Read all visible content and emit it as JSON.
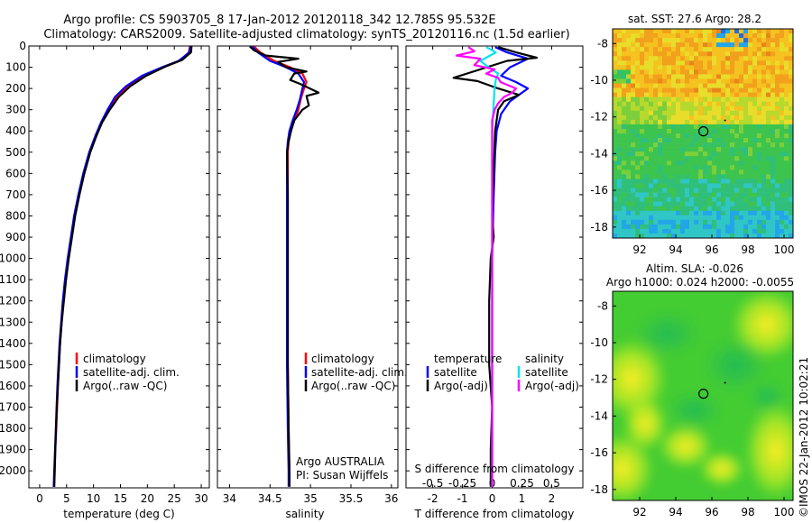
{
  "title_line1": "Argo profile: CS 5903705_8 17-Jan-2012 20120118_342 12.785S 95.532E",
  "title_line2": "Climatology: CARS2009. Satellite-adjusted climatology: synTS_20120116.nc (1.5d earlier)",
  "copyright": "©IMOS 22-Jan-2012 10:02:21",
  "colors": {
    "clim": "#ff0000",
    "sat": "#0000ff",
    "argo": "#000000",
    "sal_sat": "#00e5ee",
    "sal_argo": "#ff00ff"
  },
  "chart_data": [
    {
      "id": "temperature",
      "type": "line",
      "xlabel": "temperature (deg C)",
      "xlim": [
        -2,
        31.5
      ],
      "xticks": [
        "0",
        "5",
        "10",
        "15",
        "20",
        "25",
        "30"
      ],
      "ylim": [
        0,
        2080
      ],
      "yticks": [
        "0",
        "100",
        "200",
        "300",
        "400",
        "500",
        "600",
        "700",
        "800",
        "900",
        "1000",
        "1100",
        "1200",
        "1300",
        "1400",
        "1500",
        "1600",
        "1700",
        "1800",
        "1900",
        "2000"
      ],
      "legend": [
        "climatology",
        "satellite-adj. clim.",
        "Argo(..raw -QC)"
      ],
      "series": [
        {
          "name": "climatology",
          "color": "#ff0000",
          "points": [
            [
              27.9,
              2
            ],
            [
              27.7,
              30
            ],
            [
              26,
              70
            ],
            [
              23,
              100
            ],
            [
              19.5,
              140
            ],
            [
              16.5,
              190
            ],
            [
              14.4,
              240
            ],
            [
              12.8,
              300
            ],
            [
              11.5,
              360
            ],
            [
              10.5,
              420
            ],
            [
              9.3,
              500
            ],
            [
              8.2,
              600
            ],
            [
              7.3,
              700
            ],
            [
              6.5,
              800
            ],
            [
              5.9,
              900
            ],
            [
              5.3,
              1000
            ],
            [
              4.8,
              1100
            ],
            [
              4.4,
              1200
            ],
            [
              4.1,
              1300
            ],
            [
              3.8,
              1400
            ],
            [
              3.6,
              1500
            ],
            [
              3.4,
              1600
            ],
            [
              3.25,
              1700
            ],
            [
              3.1,
              1800
            ],
            [
              2.9,
              1900
            ],
            [
              2.75,
              2000
            ],
            [
              2.7,
              2075
            ]
          ]
        },
        {
          "name": "satellite-adj. clim.",
          "color": "#0000ff",
          "points": [
            [
              28,
              2
            ],
            [
              27.8,
              30
            ],
            [
              25.8,
              70
            ],
            [
              22.7,
              100
            ],
            [
              19,
              140
            ],
            [
              16,
              190
            ],
            [
              14,
              240
            ],
            [
              12.6,
              300
            ],
            [
              11.4,
              360
            ],
            [
              10.4,
              420
            ],
            [
              9.2,
              500
            ],
            [
              8.1,
              600
            ],
            [
              7.2,
              700
            ],
            [
              6.4,
              800
            ],
            [
              5.8,
              900
            ],
            [
              5.2,
              1000
            ],
            [
              4.7,
              1100
            ],
            [
              4.3,
              1200
            ],
            [
              4,
              1300
            ],
            [
              3.7,
              1400
            ],
            [
              3.5,
              1500
            ],
            [
              3.3,
              1600
            ],
            [
              3.15,
              1700
            ],
            [
              3,
              1800
            ],
            [
              2.85,
              1900
            ],
            [
              2.7,
              2000
            ],
            [
              2.6,
              2075
            ]
          ]
        },
        {
          "name": "Argo(..raw -QC)",
          "color": "#000000",
          "points": [
            [
              28.2,
              2
            ],
            [
              28.1,
              30
            ],
            [
              26.5,
              65
            ],
            [
              23.5,
              95
            ],
            [
              19.8,
              140
            ],
            [
              16.8,
              190
            ],
            [
              14.7,
              240
            ],
            [
              13,
              300
            ],
            [
              11.6,
              360
            ],
            [
              10.6,
              420
            ],
            [
              9.4,
              500
            ],
            [
              8.3,
              600
            ],
            [
              7.4,
              700
            ],
            [
              6.6,
              800
            ],
            [
              6,
              900
            ],
            [
              5.4,
              1000
            ],
            [
              4.9,
              1100
            ],
            [
              4.5,
              1200
            ],
            [
              4.1,
              1300
            ],
            [
              3.8,
              1400
            ],
            [
              3.6,
              1500
            ],
            [
              3.4,
              1600
            ],
            [
              3.2,
              1700
            ],
            [
              3.05,
              1800
            ],
            [
              2.9,
              1900
            ],
            [
              2.8,
              2000
            ],
            [
              2.7,
              2075
            ]
          ]
        }
      ]
    },
    {
      "id": "salinity",
      "type": "line",
      "xlabel": "salinity",
      "xlim": [
        33.85,
        36.08
      ],
      "xticks": [
        "34",
        "34.5",
        "35",
        "35.5",
        "36"
      ],
      "ylim": [
        0,
        2080
      ],
      "legend": [
        "climatology",
        "satellite-adj. clim.",
        "Argo(..raw -QC)"
      ],
      "annotation": [
        "Argo AUSTRALIA",
        "PI: Susan Wijffels"
      ],
      "series": [
        {
          "name": "climatology",
          "color": "#ff0000",
          "points": [
            [
              34.3,
              2
            ],
            [
              34.38,
              30
            ],
            [
              34.55,
              70
            ],
            [
              34.75,
              100
            ],
            [
              34.9,
              130
            ],
            [
              34.95,
              170
            ],
            [
              34.92,
              200
            ],
            [
              34.88,
              250
            ],
            [
              34.85,
              300
            ],
            [
              34.8,
              350
            ],
            [
              34.75,
              400
            ],
            [
              34.73,
              450
            ],
            [
              34.72,
              500
            ],
            [
              34.72,
              700
            ],
            [
              34.72,
              900
            ],
            [
              34.72,
              1200
            ],
            [
              34.72,
              1500
            ],
            [
              34.73,
              1800
            ],
            [
              34.74,
              2000
            ],
            [
              34.74,
              2075
            ]
          ]
        },
        {
          "name": "satellite-adj. clim.",
          "color": "#0000ff",
          "points": [
            [
              34.28,
              2
            ],
            [
              34.35,
              30
            ],
            [
              34.5,
              70
            ],
            [
              34.7,
              100
            ],
            [
              34.85,
              130
            ],
            [
              34.92,
              170
            ],
            [
              34.9,
              200
            ],
            [
              34.87,
              250
            ],
            [
              34.83,
              300
            ],
            [
              34.78,
              350
            ],
            [
              34.74,
              400
            ],
            [
              34.72,
              450
            ],
            [
              34.71,
              500
            ],
            [
              34.71,
              700
            ],
            [
              34.71,
              900
            ],
            [
              34.71,
              1200
            ],
            [
              34.71,
              1500
            ],
            [
              34.72,
              1800
            ],
            [
              34.73,
              2000
            ],
            [
              34.73,
              2075
            ]
          ]
        },
        {
          "name": "Argo(..raw -QC)",
          "color": "#000000",
          "points": [
            [
              34.25,
              2
            ],
            [
              34.3,
              20
            ],
            [
              34.45,
              45
            ],
            [
              34.85,
              60
            ],
            [
              34.6,
              75
            ],
            [
              34.7,
              100
            ],
            [
              34.95,
              120
            ],
            [
              34.8,
              130
            ],
            [
              34.75,
              160
            ],
            [
              34.88,
              180
            ],
            [
              35.1,
              220
            ],
            [
              34.95,
              235
            ],
            [
              34.98,
              280
            ],
            [
              34.9,
              300
            ],
            [
              34.8,
              350
            ],
            [
              34.76,
              400
            ],
            [
              34.73,
              450
            ],
            [
              34.71,
              500
            ],
            [
              34.72,
              700
            ],
            [
              34.72,
              900
            ],
            [
              34.72,
              1200
            ],
            [
              34.72,
              1500
            ],
            [
              34.73,
              1800
            ],
            [
              34.74,
              2000
            ],
            [
              34.74,
              2075
            ]
          ]
        }
      ]
    },
    {
      "id": "differences",
      "type": "line",
      "xlabel": "T difference from climatology",
      "xlabel_top": "S difference from climatology",
      "xlim": [
        -2.9,
        3.05
      ],
      "xticks": [
        "-2",
        "-1",
        "0",
        "1",
        "2"
      ],
      "xticks_s": [
        "-0.5",
        "-0.25",
        "0",
        "0.25",
        "0.5"
      ],
      "ylim": [
        0,
        2080
      ],
      "legend_t": {
        "title": "temperature",
        "items": [
          "satellite",
          "Argo(-adj)"
        ]
      },
      "legend_s": {
        "title": "salinity",
        "items": [
          "satellite",
          "Argo(-adj)"
        ]
      },
      "series": [
        {
          "name": "T satellite",
          "color": "#0000ff",
          "points": [
            [
              0.1,
              5
            ],
            [
              0.5,
              30
            ],
            [
              1.2,
              60
            ],
            [
              0.6,
              100
            ],
            [
              0.3,
              140
            ],
            [
              0.8,
              170
            ],
            [
              1.2,
              200
            ],
            [
              0.6,
              260
            ],
            [
              0.3,
              320
            ],
            [
              0.15,
              400
            ],
            [
              0.1,
              500
            ],
            [
              0.05,
              700
            ],
            [
              0,
              1000
            ],
            [
              0,
              1500
            ],
            [
              0,
              2000
            ],
            [
              0,
              2075
            ]
          ]
        },
        {
          "name": "T Argo(-adj)",
          "color": "#000000",
          "points": [
            [
              0.2,
              5
            ],
            [
              0.8,
              30
            ],
            [
              1.5,
              55
            ],
            [
              0.5,
              70
            ],
            [
              -1.3,
              150
            ],
            [
              -0.5,
              165
            ],
            [
              0.2,
              200
            ],
            [
              0.9,
              230
            ],
            [
              0.4,
              260
            ],
            [
              0.2,
              300
            ],
            [
              0.1,
              400
            ],
            [
              0.05,
              600
            ],
            [
              0,
              800
            ],
            [
              0.05,
              900
            ],
            [
              -0.05,
              1000
            ],
            [
              -0.1,
              1200
            ],
            [
              -0.1,
              1500
            ],
            [
              0,
              1700
            ],
            [
              -0.05,
              1900
            ],
            [
              -0.05,
              2000
            ],
            [
              -0.05,
              2075
            ]
          ]
        },
        {
          "name": "S satellite",
          "color": "#00e5ee",
          "points": [
            [
              -0.05,
              5
            ],
            [
              0.03,
              30
            ],
            [
              -0.1,
              70
            ],
            [
              -0.03,
              100
            ],
            [
              0.05,
              130
            ],
            [
              0.03,
              160
            ],
            [
              0.02,
              200
            ],
            [
              0.01,
              300
            ],
            [
              0,
              400
            ],
            [
              0,
              600
            ],
            [
              0,
              1000
            ],
            [
              0,
              1500
            ],
            [
              0,
              2000
            ],
            [
              0,
              2075
            ]
          ]
        },
        {
          "name": "S Argo(-adj)",
          "color": "#ff00ff",
          "points": [
            [
              -0.2,
              5
            ],
            [
              -0.15,
              25
            ],
            [
              -0.3,
              45
            ],
            [
              -0.1,
              60
            ],
            [
              -0.15,
              90
            ],
            [
              0.02,
              110
            ],
            [
              -0.05,
              130
            ],
            [
              0.05,
              150
            ],
            [
              0.07,
              170
            ],
            [
              0.2,
              200
            ],
            [
              0.17,
              220
            ],
            [
              0.1,
              240
            ],
            [
              0.05,
              270
            ],
            [
              0.02,
              300
            ],
            [
              0,
              350
            ],
            [
              0,
              500
            ],
            [
              0,
              1000
            ],
            [
              0,
              1500
            ],
            [
              0,
              2000
            ],
            [
              0,
              2075
            ]
          ]
        }
      ]
    },
    {
      "id": "sst_map",
      "type": "heatmap",
      "title": "sat. SST: 27.6  Argo: 28.2",
      "xlim": [
        90.5,
        100.5
      ],
      "ylim": [
        -18.6,
        -7.2
      ],
      "xticks": [
        "92",
        "94",
        "96",
        "98",
        "100"
      ],
      "yticks": [
        "-8",
        "-10",
        "-12",
        "-14",
        "-16",
        "-18"
      ],
      "marker": {
        "lon": 95.532,
        "lat": -12.785
      }
    },
    {
      "id": "sla_map",
      "type": "heatmap",
      "title": "Altim. SLA: -0.026",
      "subtitle": "Argo h1000: 0.024  h2000: -0.0055",
      "xlim": [
        90.5,
        100.5
      ],
      "ylim": [
        -18.6,
        -7.2
      ],
      "xticks": [
        "92",
        "94",
        "96",
        "98",
        "100"
      ],
      "yticks": [
        "-8",
        "-10",
        "-12",
        "-14",
        "-16",
        "-18"
      ],
      "marker": {
        "lon": 95.532,
        "lat": -12.785
      }
    }
  ]
}
